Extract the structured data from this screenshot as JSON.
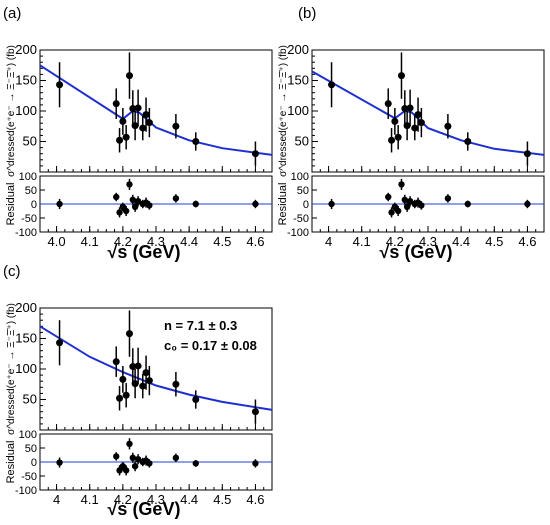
{
  "chart_data": [
    {
      "type": "scatter",
      "panel_label": "(a)",
      "ylabel": "σ^dressed(e⁺e⁻ → Ξ⁻Ξ̄⁺) (fb)",
      "residual_label": "Residual",
      "xlabel": "√s  (GeV)",
      "xlim": [
        3.95,
        4.65
      ],
      "ylim": [
        0,
        200
      ],
      "residual_ylim": [
        -100,
        100
      ],
      "x_ticks": [
        "4.0",
        "4.1",
        "4.2",
        "4.3",
        "4.4",
        "4.5",
        "4.6"
      ],
      "y_ticks": [
        "50",
        "100",
        "150",
        "200"
      ],
      "residual_ticks": [
        "-100",
        "-50",
        "0",
        "50",
        "100"
      ],
      "series": [
        {
          "x": [
            4.009,
            4.18,
            4.19,
            4.2,
            4.21,
            4.22,
            4.23,
            4.237,
            4.246,
            4.26,
            4.27,
            4.28,
            4.36,
            4.42,
            4.6
          ],
          "y": [
            143,
            112,
            52,
            83,
            57,
            158,
            104,
            76,
            105,
            72,
            94,
            81,
            75,
            50,
            30
          ],
          "err": [
            37,
            25,
            20,
            22,
            20,
            38,
            30,
            24,
            30,
            20,
            28,
            24,
            20,
            15,
            20
          ]
        }
      ],
      "residuals": [
        0,
        25,
        -30,
        -10,
        -25,
        70,
        15,
        -10,
        10,
        0,
        5,
        -5,
        20,
        0,
        0
      ],
      "residual_err": [
        18,
        15,
        18,
        15,
        18,
        20,
        18,
        18,
        18,
        15,
        18,
        15,
        15,
        12,
        15
      ],
      "fit_curve": {
        "x": [
          3.95,
          4.2,
          4.23,
          4.25,
          4.3,
          4.4,
          4.5,
          4.65
        ],
        "y": [
          175,
          87,
          100,
          97,
          73,
          52,
          39,
          28
        ]
      }
    },
    {
      "type": "scatter",
      "panel_label": "(b)",
      "ylabel": "σ^dressed(e⁺e⁻ → Ξ⁻Ξ̄⁺) (fb)",
      "residual_label": "Residual",
      "xlabel": "√s  (GeV)",
      "xlim": [
        3.95,
        4.65
      ],
      "ylim": [
        0,
        200
      ],
      "residual_ylim": [
        -100,
        100
      ],
      "x_ticks": [
        "4",
        "4.1",
        "4.2",
        "4.3",
        "4.4",
        "4.5",
        "4.6"
      ],
      "y_ticks": [
        "50",
        "100",
        "150",
        "200"
      ],
      "residual_ticks": [
        "-100",
        "-50",
        "0",
        "50",
        "100"
      ],
      "series": [
        {
          "x": [
            4.009,
            4.18,
            4.19,
            4.2,
            4.21,
            4.22,
            4.23,
            4.237,
            4.246,
            4.26,
            4.27,
            4.28,
            4.36,
            4.42,
            4.6
          ],
          "y": [
            143,
            112,
            52,
            83,
            57,
            158,
            104,
            76,
            105,
            72,
            94,
            81,
            75,
            50,
            30
          ],
          "err": [
            37,
            25,
            20,
            22,
            20,
            38,
            30,
            24,
            30,
            20,
            28,
            24,
            20,
            15,
            20
          ]
        }
      ],
      "residuals": [
        0,
        25,
        -30,
        -10,
        -25,
        70,
        15,
        -10,
        10,
        0,
        5,
        -5,
        20,
        0,
        0
      ],
      "residual_err": [
        18,
        15,
        18,
        15,
        18,
        20,
        18,
        18,
        18,
        15,
        18,
        15,
        15,
        12,
        15
      ],
      "fit_curve": {
        "x": [
          3.95,
          4.2,
          4.23,
          4.25,
          4.3,
          4.4,
          4.5,
          4.65
        ],
        "y": [
          165,
          88,
          100,
          98,
          72,
          52,
          38,
          28
        ]
      }
    },
    {
      "type": "scatter",
      "panel_label": "(c)",
      "ylabel": "σ^dressed(e⁺e⁻ → Ξ⁻Ξ̄⁺) (fb)",
      "residual_label": "Residual",
      "xlabel": "√s  (GeV)",
      "xlim": [
        3.95,
        4.65
      ],
      "ylim": [
        0,
        200
      ],
      "residual_ylim": [
        -100,
        100
      ],
      "x_ticks": [
        "4",
        "4.1",
        "4.2",
        "4.3",
        "4.4",
        "4.5",
        "4.6"
      ],
      "y_ticks": [
        "50",
        "100",
        "150",
        "200"
      ],
      "residual_ticks": [
        "-100",
        "-50",
        "0",
        "50",
        "100"
      ],
      "annotations": [
        "n = 7.1 ± 0.3",
        "c₀ = 0.17 ± 0.08"
      ],
      "series": [
        {
          "x": [
            4.009,
            4.18,
            4.19,
            4.2,
            4.21,
            4.22,
            4.23,
            4.237,
            4.246,
            4.26,
            4.27,
            4.28,
            4.36,
            4.42,
            4.6
          ],
          "y": [
            143,
            112,
            52,
            83,
            57,
            158,
            104,
            76,
            105,
            72,
            94,
            81,
            75,
            50,
            30
          ],
          "err": [
            37,
            25,
            20,
            22,
            20,
            38,
            30,
            24,
            30,
            20,
            28,
            24,
            20,
            15,
            20
          ]
        }
      ],
      "residuals": [
        -2,
        20,
        -30,
        -15,
        -30,
        65,
        15,
        -15,
        10,
        0,
        5,
        -5,
        15,
        -5,
        -5
      ],
      "residual_err": [
        18,
        15,
        18,
        15,
        18,
        20,
        18,
        18,
        18,
        15,
        18,
        15,
        15,
        12,
        15
      ],
      "fit_curve": {
        "x": [
          3.95,
          4.1,
          4.2,
          4.3,
          4.4,
          4.5,
          4.65
        ],
        "y": [
          170,
          120,
          95,
          73,
          58,
          46,
          33
        ]
      }
    }
  ]
}
